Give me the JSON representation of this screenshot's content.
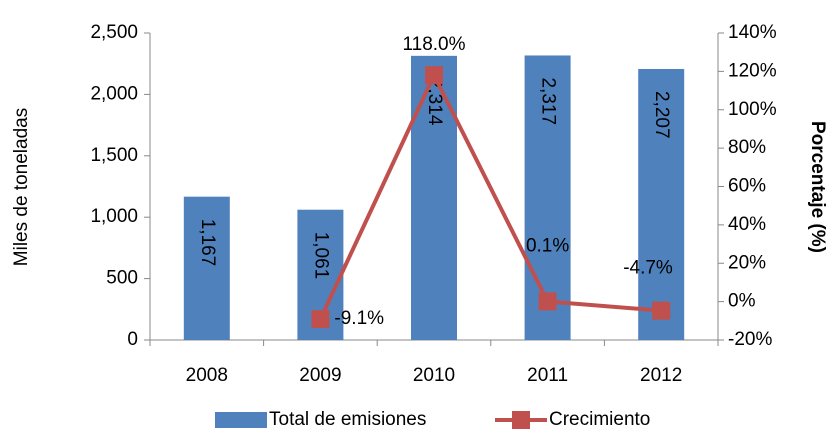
{
  "chart_data": {
    "type": "bar_line",
    "categories": [
      "2008",
      "2009",
      "2010",
      "2011",
      "2012"
    ],
    "ylabel": "Miles de toneladas",
    "y2label": "Porcentaje (%)",
    "ylim": [
      0,
      2500
    ],
    "yticks": [
      0,
      500,
      {
        "value": 1000,
        "label": "1,000"
      },
      {
        "value": 1500,
        "label": "1,500"
      },
      {
        "value": 2000,
        "label": "2,000"
      },
      {
        "value": 2500,
        "label": "2,500"
      }
    ],
    "y2lim": [
      -20,
      140
    ],
    "y2ticks": [
      {
        "value": -20,
        "label": "-20%"
      },
      {
        "value": 0,
        "label": "0%"
      },
      {
        "value": 20,
        "label": "20%"
      },
      {
        "value": 40,
        "label": "40%"
      },
      {
        "value": 60,
        "label": "60%"
      },
      {
        "value": 80,
        "label": "80%"
      },
      {
        "value": 100,
        "label": "100%"
      },
      {
        "value": 120,
        "label": "120%"
      },
      {
        "value": 140,
        "label": "140%"
      }
    ],
    "series": [
      {
        "name": "Total de emisiones",
        "type": "bar",
        "color": "#4f81bd",
        "values": [
          1167,
          1061,
          2314,
          2317,
          2207
        ],
        "value_labels": [
          "1,167",
          "1,061",
          "2,314",
          "2,317",
          "2,207"
        ]
      },
      {
        "name": "Crecimiento",
        "type": "line",
        "axis": "y2",
        "color": "#c0504d",
        "values": [
          null,
          -9.1,
          118.0,
          0.1,
          -4.7
        ],
        "value_labels": [
          null,
          "-9.1%",
          "118.0%",
          "0.1%",
          "-4.7%"
        ]
      }
    ],
    "legend": "bottom",
    "grid": false
  }
}
